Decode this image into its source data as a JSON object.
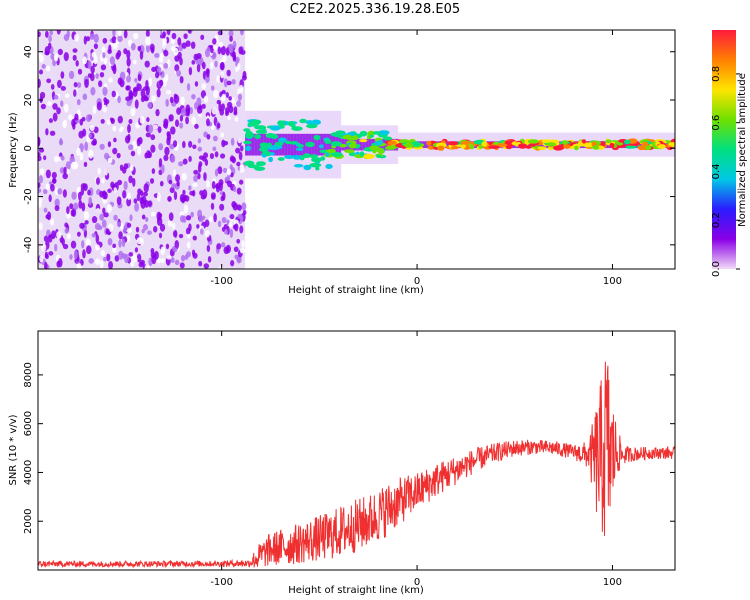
{
  "title": "C2E2.2025.336.19.28.E05",
  "chart_data": [
    {
      "type": "heatmap",
      "name": "spectrogram",
      "xlabel": "Height of straight line (km)",
      "ylabel": "Frequency (Hz)",
      "xlim": [
        -194,
        132
      ],
      "ylim": [
        -50,
        49
      ],
      "xticks": [
        -100,
        0,
        100
      ],
      "xtick_labels": [
        "-100",
        "0",
        "100"
      ],
      "yticks": [
        -40,
        -20,
        0,
        20,
        40
      ],
      "ytick_labels": [
        "-40",
        "-20",
        "0",
        "20",
        "40"
      ],
      "noise_region_end_km": -88,
      "signal_band_center_hz": 1.5,
      "signal_band_halfwidth_hz": 2,
      "colorbar": {
        "label": "Normalized spectral amplitude",
        "range": [
          0,
          0.98
        ],
        "ticks": [
          0,
          0.2,
          0.4,
          0.6,
          0.8
        ],
        "tick_labels": [
          "0.0",
          "0.2",
          "0.4",
          "0.6",
          "0.8"
        ],
        "colors": [
          "#f2d9f7",
          "#8a00e6",
          "#2b1cff",
          "#00c8e6",
          "#00e080",
          "#6ee000",
          "#ffe400",
          "#ff8000",
          "#ff1a3c"
        ]
      }
    },
    {
      "type": "line",
      "name": "snr",
      "xlabel": "Height of straight line (km)",
      "ylabel": "SNR (10 * v/v)",
      "xlim": [
        -194,
        132
      ],
      "ylim": [
        0,
        9800
      ],
      "xticks": [
        -100,
        0,
        100
      ],
      "xtick_labels": [
        "-100",
        "0",
        "100"
      ],
      "yticks": [
        2000,
        4000,
        6000,
        8000
      ],
      "ytick_labels": [
        "2000",
        "4000",
        "6000",
        "8000"
      ],
      "color": "#f03030",
      "series": [
        {
          "name": "SNR",
          "x": [
            -194,
            -150,
            -100,
            -86,
            -82,
            -75,
            -65,
            -55,
            -45,
            -35,
            -25,
            -15,
            -5,
            0,
            10,
            20,
            30,
            40,
            50,
            60,
            70,
            80,
            88,
            92,
            95,
            97,
            99,
            102,
            105,
            110,
            120,
            132
          ],
          "y": [
            250,
            250,
            260,
            280,
            500,
            850,
            1000,
            1200,
            1400,
            1700,
            2000,
            2500,
            3000,
            3200,
            3700,
            4100,
            4500,
            4800,
            5000,
            5050,
            5000,
            4850,
            4700,
            4500,
            4700,
            5200,
            4600,
            4900,
            4700,
            4750,
            4800,
            4800
          ],
          "noise_amplitude": [
            120,
            120,
            120,
            150,
            500,
            700,
            800,
            900,
            1000,
            1100,
            1100,
            1100,
            900,
            800,
            700,
            600,
            500,
            400,
            350,
            300,
            300,
            300,
            600,
            2500,
            3500,
            4500,
            3000,
            1200,
            400,
            300,
            250,
            250
          ]
        }
      ]
    }
  ]
}
